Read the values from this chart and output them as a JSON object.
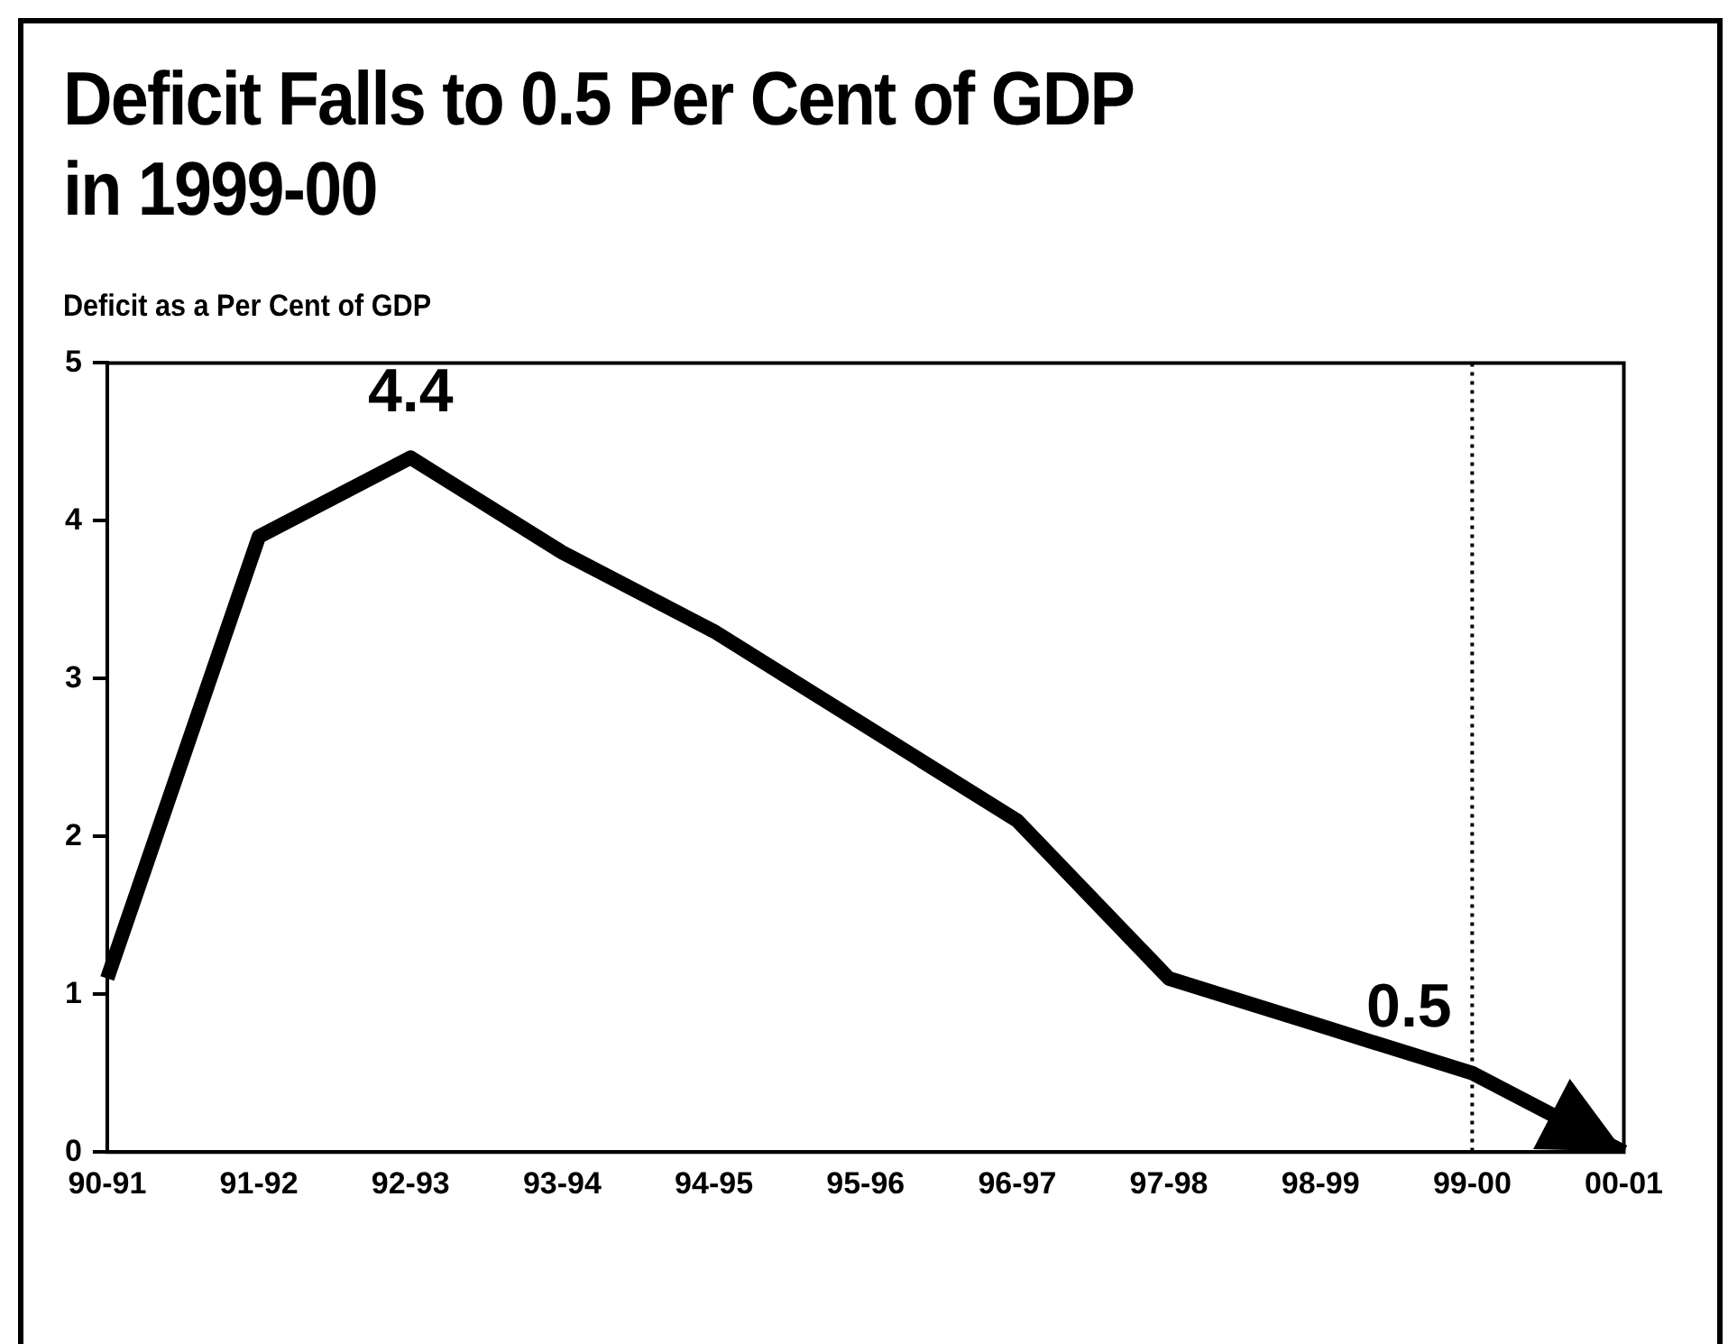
{
  "chart_data": {
    "type": "line",
    "title": "Deficit Falls to 0.5 Per Cent of GDP\nin 1999-00",
    "ylabel": "Deficit as a Per Cent of GDP",
    "categories": [
      "90-91",
      "91-92",
      "92-93",
      "93-94",
      "94-95",
      "95-96",
      "96-97",
      "97-98",
      "98-99",
      "99-00",
      "00-01"
    ],
    "series": [
      {
        "color": "#000000",
        "values": [
          1.1,
          3.9,
          4.4,
          3.8,
          3.3,
          2.7,
          2.1,
          1.1,
          0.8,
          0.5,
          0.0
        ],
        "value_labels": [
          null,
          null,
          "4.4",
          null,
          null,
          null,
          null,
          null,
          null,
          "0.5",
          null
        ]
      }
    ],
    "ylim": [
      0,
      5
    ],
    "yticks": [
      0,
      1,
      2,
      3,
      4,
      5
    ],
    "grid": false,
    "legend": false,
    "marker": "none",
    "line_style": "solid",
    "ref_lines": [
      {
        "axis": "x",
        "value": "99-00",
        "color": "#000000",
        "line_style": "dotted"
      }
    ]
  }
}
